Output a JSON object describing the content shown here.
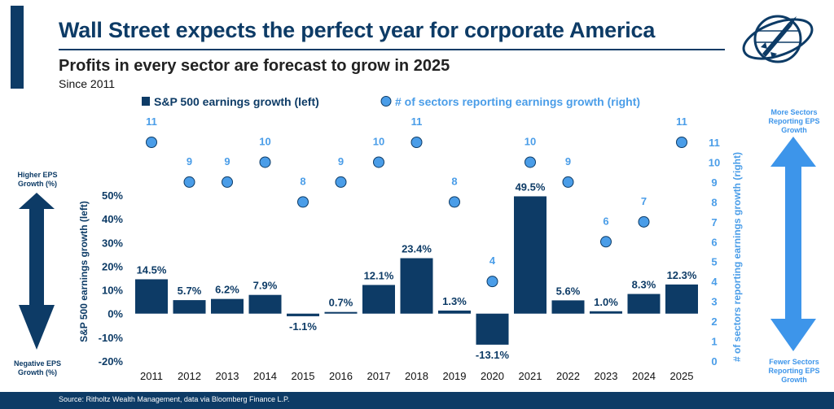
{
  "header": {
    "title": "Wall Street expects the perfect year for corporate America",
    "subtitle": "Profits in every sector are forecast to grow in 2025",
    "since": "Since 2011"
  },
  "legend": {
    "bars": "S&P 500 earnings growth (left)",
    "dots": "# of sectors reporting earnings growth (right)"
  },
  "left_arrow": {
    "top": "Higher EPS Growth (%)",
    "bottom": "Negative EPS Growth (%)"
  },
  "right_arrow": {
    "top": "More Sectors Reporting EPS Growth",
    "bottom": "Fewer Sectors Reporting EPS Growth"
  },
  "footer": {
    "source": "Source: Ritholtz Wealth Management, data via Bloomberg Finance L.P."
  },
  "colors": {
    "navy": "#0d3b66",
    "light_blue": "#4a9de8",
    "arrow_dark": "#0d3b66",
    "arrow_light": "#3d95ea"
  },
  "logo_icon": "rocket-globe-logo-icon",
  "chart_data": {
    "type": "bar",
    "categories": [
      "2011",
      "2012",
      "2013",
      "2014",
      "2015",
      "2016",
      "2017",
      "2018",
      "2019",
      "2020",
      "2021",
      "2022",
      "2023",
      "2024",
      "2025"
    ],
    "series": [
      {
        "name": "S&P 500 earnings growth (left)",
        "type": "bar",
        "axis": "left",
        "values": [
          14.5,
          5.7,
          6.2,
          7.9,
          -1.1,
          0.7,
          12.1,
          23.4,
          1.3,
          -13.1,
          49.5,
          5.6,
          1.0,
          8.3,
          12.3
        ],
        "labels": [
          "14.5%",
          "5.7%",
          "6.2%",
          "7.9%",
          "-1.1%",
          "0.7%",
          "12.1%",
          "23.4%",
          "1.3%",
          "-13.1%",
          "49.5%",
          "5.6%",
          "1.0%",
          "8.3%",
          "12.3%"
        ]
      },
      {
        "name": "# of sectors reporting earnings growth (right)",
        "type": "scatter",
        "axis": "right",
        "values": [
          11,
          9,
          9,
          10,
          8,
          9,
          10,
          11,
          8,
          4,
          10,
          9,
          6,
          7,
          11
        ],
        "labels": [
          "11",
          "9",
          "9",
          "10",
          "8",
          "9",
          "10",
          "11",
          "8",
          "4",
          "10",
          "9",
          "6",
          "7",
          "11"
        ]
      }
    ],
    "ylabel": "S&P 500 earnings growth (left)",
    "y2label": "# of sectors reporting earnings growth (right)",
    "ylim": [
      -20,
      50
    ],
    "yticks": [
      -20,
      -10,
      0,
      10,
      20,
      30,
      40,
      50
    ],
    "ytick_labels": [
      "-20%",
      "-10%",
      "0%",
      "10%",
      "20%",
      "30%",
      "40%",
      "50%"
    ],
    "y2lim": [
      0,
      11
    ],
    "y2ticks": [
      0,
      1,
      2,
      3,
      4,
      5,
      6,
      7,
      8,
      9,
      10,
      11
    ],
    "y2tick_labels": [
      "0",
      "1",
      "2",
      "3",
      "4",
      "5",
      "6",
      "7",
      "8",
      "9",
      "10",
      "11"
    ],
    "grid": false,
    "legend_position": "top"
  }
}
